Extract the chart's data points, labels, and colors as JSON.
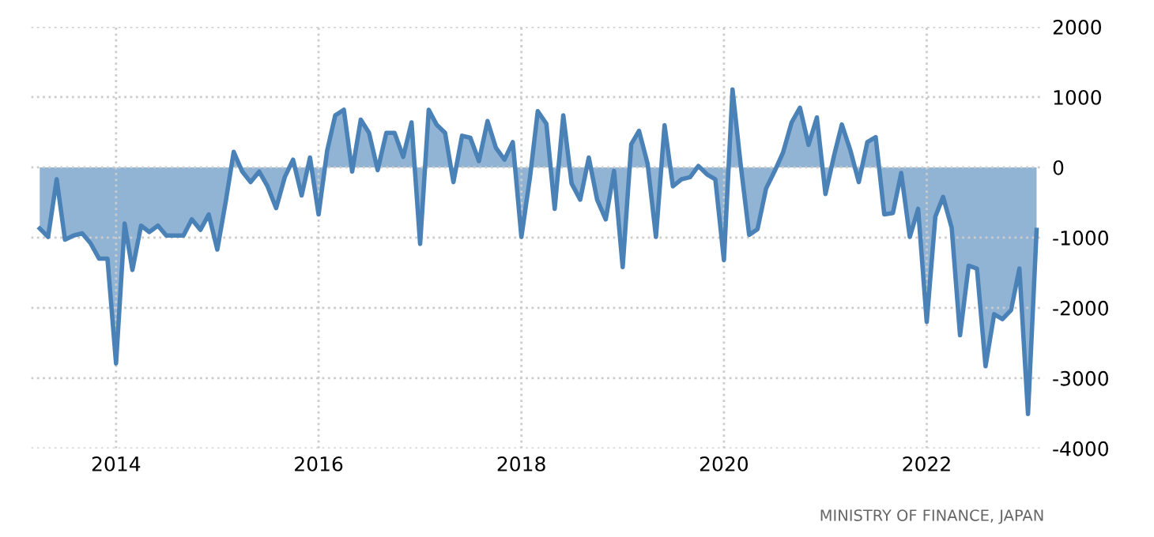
{
  "chart_data": {
    "type": "area",
    "annotations": [
      "MINISTRY OF FINANCE, JAPAN"
    ],
    "xlim": [
      "2013-03-01",
      "2023-03-01"
    ],
    "xticks": [
      {
        "value": "2014-01-01",
        "label": "2014"
      },
      {
        "value": "2016-01-01",
        "label": "2016"
      },
      {
        "value": "2018-01-01",
        "label": "2018"
      },
      {
        "value": "2020-01-01",
        "label": "2020"
      },
      {
        "value": "2022-01-01",
        "label": "2022"
      }
    ],
    "ylim": [
      -4000,
      2000
    ],
    "yticks": [
      -4000,
      -3000,
      -2000,
      -1000,
      0,
      1000,
      2000
    ],
    "grid": true,
    "line_style": "solid",
    "series": [
      {
        "color": "#4a82b8",
        "x": [
          "2013-04",
          "2013-05",
          "2013-06",
          "2013-07",
          "2013-08",
          "2013-09",
          "2013-10",
          "2013-11",
          "2013-12",
          "2014-01",
          "2014-02",
          "2014-03",
          "2014-04",
          "2014-05",
          "2014-06",
          "2014-07",
          "2014-08",
          "2014-09",
          "2014-10",
          "2014-11",
          "2014-12",
          "2015-01",
          "2015-02",
          "2015-03",
          "2015-04",
          "2015-05",
          "2015-06",
          "2015-07",
          "2015-08",
          "2015-09",
          "2015-10",
          "2015-11",
          "2015-12",
          "2016-01",
          "2016-02",
          "2016-03",
          "2016-04",
          "2016-05",
          "2016-06",
          "2016-07",
          "2016-08",
          "2016-09",
          "2016-10",
          "2016-11",
          "2016-12",
          "2017-01",
          "2017-02",
          "2017-03",
          "2017-04",
          "2017-05",
          "2017-06",
          "2017-07",
          "2017-08",
          "2017-09",
          "2017-10",
          "2017-11",
          "2017-12",
          "2018-01",
          "2018-02",
          "2018-03",
          "2018-04",
          "2018-05",
          "2018-06",
          "2018-07",
          "2018-08",
          "2018-09",
          "2018-10",
          "2018-11",
          "2018-12",
          "2019-01",
          "2019-02",
          "2019-03",
          "2019-04",
          "2019-05",
          "2019-06",
          "2019-07",
          "2019-08",
          "2019-09",
          "2019-10",
          "2019-11",
          "2019-12",
          "2020-01",
          "2020-02",
          "2020-03",
          "2020-04",
          "2020-05",
          "2020-06",
          "2020-07",
          "2020-08",
          "2020-09",
          "2020-10",
          "2020-11",
          "2020-12",
          "2021-01",
          "2021-02",
          "2021-03",
          "2021-04",
          "2021-05",
          "2021-06",
          "2021-07",
          "2021-08",
          "2021-09",
          "2021-10",
          "2021-11",
          "2021-12",
          "2022-01",
          "2022-02",
          "2022-03",
          "2022-04",
          "2022-05",
          "2022-06",
          "2022-07",
          "2022-08",
          "2022-09",
          "2022-10",
          "2022-11",
          "2022-12",
          "2023-01",
          "2023-02"
        ],
        "values": [
          -870,
          -990,
          -170,
          -1030,
          -970,
          -940,
          -1080,
          -1300,
          -1300,
          -2790,
          -800,
          -1460,
          -830,
          -920,
          -830,
          -970,
          -970,
          -970,
          -740,
          -890,
          -670,
          -1170,
          -470,
          220,
          -60,
          -210,
          -60,
          -270,
          -580,
          -140,
          110,
          -400,
          140,
          -670,
          240,
          740,
          820,
          -60,
          680,
          490,
          -40,
          490,
          490,
          150,
          640,
          -1090,
          820,
          610,
          490,
          -210,
          450,
          420,
          90,
          660,
          280,
          110,
          360,
          -990,
          -140,
          800,
          620,
          -590,
          740,
          -230,
          -460,
          140,
          -460,
          -740,
          -50,
          -1420,
          330,
          520,
          50,
          -990,
          600,
          -270,
          -170,
          -140,
          20,
          -100,
          -170,
          -1320,
          1110,
          50,
          -960,
          -880,
          -300,
          -60,
          210,
          640,
          850,
          320,
          710,
          -380,
          170,
          610,
          240,
          -210,
          360,
          430,
          -670,
          -650,
          -80,
          -990,
          -590,
          -2200,
          -700,
          -420,
          -860,
          -2390,
          -1400,
          -1440,
          -2830,
          -2090,
          -2160,
          -2030,
          -1440,
          -3510,
          -890
        ]
      }
    ]
  }
}
